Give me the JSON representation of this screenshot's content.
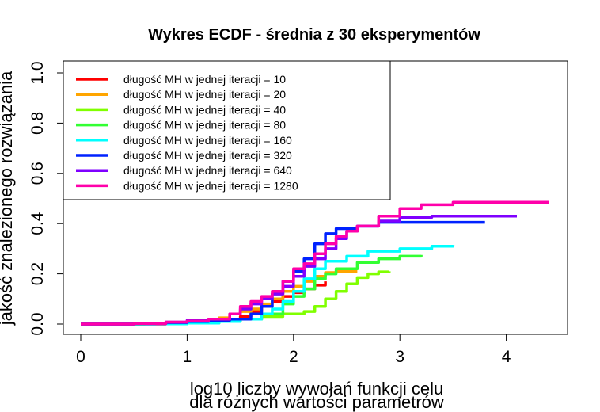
{
  "chart_data": {
    "type": "line",
    "title": "Wykres ECDF - średnia z 30 eksperymentów",
    "xlabel": "log10 liczby wywołań funkcji celu",
    "xlabel_line2": "dla różnych wartości parametrów",
    "ylabel": "jakość znalezionego rozwiązania",
    "xlim": [
      0,
      4.4
    ],
    "ylim": [
      0,
      1.0
    ],
    "xticks": [
      "0",
      "1",
      "2",
      "3",
      "4"
    ],
    "yticks": [
      "0.0",
      "0.2",
      "0.4",
      "0.6",
      "0.8",
      "1.0"
    ],
    "grid": false,
    "legend_position": "top-left",
    "series": [
      {
        "name": "długość MH w jednej iteracji = 10",
        "color": "#ff0000",
        "points": [
          [
            0,
            0
          ],
          [
            0.5,
            0
          ],
          [
            0.8,
            0.003
          ],
          [
            1.0,
            0.006
          ],
          [
            1.2,
            0.01
          ],
          [
            1.4,
            0.02
          ],
          [
            1.5,
            0.03
          ],
          [
            1.6,
            0.05
          ],
          [
            1.7,
            0.07
          ],
          [
            1.8,
            0.09
          ],
          [
            1.9,
            0.11
          ],
          [
            2.0,
            0.125
          ],
          [
            2.1,
            0.14
          ],
          [
            2.2,
            0.155
          ],
          [
            2.3,
            0.17
          ]
        ]
      },
      {
        "name": "długość MH w jednej iteracji = 20",
        "color": "#ffa500",
        "points": [
          [
            0,
            0
          ],
          [
            0.6,
            0.001
          ],
          [
            1.0,
            0.005
          ],
          [
            1.2,
            0.01
          ],
          [
            1.3,
            0.025
          ],
          [
            1.4,
            0.04
          ],
          [
            1.5,
            0.05
          ],
          [
            1.6,
            0.06
          ],
          [
            1.7,
            0.08
          ],
          [
            1.8,
            0.1
          ],
          [
            1.9,
            0.13
          ],
          [
            2.0,
            0.15
          ],
          [
            2.1,
            0.17
          ],
          [
            2.2,
            0.19
          ],
          [
            2.3,
            0.205
          ],
          [
            2.4,
            0.21
          ],
          [
            2.6,
            0.21
          ]
        ]
      },
      {
        "name": "długość MH w jednej iteracji = 40",
        "color": "#80ff00",
        "points": [
          [
            0,
            0
          ],
          [
            0.6,
            0.001
          ],
          [
            1.0,
            0.004
          ],
          [
            1.3,
            0.01
          ],
          [
            1.5,
            0.02
          ],
          [
            1.7,
            0.03
          ],
          [
            1.9,
            0.04
          ],
          [
            2.1,
            0.05
          ],
          [
            2.2,
            0.07
          ],
          [
            2.3,
            0.1
          ],
          [
            2.4,
            0.13
          ],
          [
            2.5,
            0.16
          ],
          [
            2.6,
            0.185
          ],
          [
            2.7,
            0.2
          ],
          [
            2.8,
            0.208
          ],
          [
            2.9,
            0.21
          ]
        ]
      },
      {
        "name": "długość MH w jednej iteracji = 80",
        "color": "#33ff33",
        "points": [
          [
            0,
            0
          ],
          [
            0.6,
            0.002
          ],
          [
            1.0,
            0.005
          ],
          [
            1.3,
            0.01
          ],
          [
            1.5,
            0.02
          ],
          [
            1.7,
            0.04
          ],
          [
            1.9,
            0.08
          ],
          [
            2.0,
            0.11
          ],
          [
            2.1,
            0.14
          ],
          [
            2.2,
            0.18
          ],
          [
            2.3,
            0.2
          ],
          [
            2.4,
            0.22
          ],
          [
            2.6,
            0.245
          ],
          [
            2.8,
            0.26
          ],
          [
            3.0,
            0.27
          ],
          [
            3.2,
            0.275
          ]
        ]
      },
      {
        "name": "długość MH w jednej iteracji = 160",
        "color": "#00ffff",
        "points": [
          [
            0,
            0
          ],
          [
            0.7,
            0.001
          ],
          [
            1.0,
            0.004
          ],
          [
            1.3,
            0.01
          ],
          [
            1.5,
            0.02
          ],
          [
            1.7,
            0.04
          ],
          [
            1.8,
            0.06
          ],
          [
            1.9,
            0.09
          ],
          [
            2.0,
            0.13
          ],
          [
            2.1,
            0.18
          ],
          [
            2.2,
            0.22
          ],
          [
            2.3,
            0.25
          ],
          [
            2.5,
            0.27
          ],
          [
            2.7,
            0.29
          ],
          [
            3.0,
            0.3
          ],
          [
            3.3,
            0.31
          ],
          [
            3.5,
            0.315
          ]
        ]
      },
      {
        "name": "długość MH w jednej iteracji = 320",
        "color": "#0022ff",
        "points": [
          [
            0,
            0
          ],
          [
            0.5,
            0.002
          ],
          [
            0.8,
            0.006
          ],
          [
            1.0,
            0.01
          ],
          [
            1.2,
            0.015
          ],
          [
            1.4,
            0.02
          ],
          [
            1.6,
            0.04
          ],
          [
            1.7,
            0.07
          ],
          [
            1.8,
            0.12
          ],
          [
            1.9,
            0.17
          ],
          [
            2.0,
            0.21
          ],
          [
            2.1,
            0.26
          ],
          [
            2.2,
            0.32
          ],
          [
            2.3,
            0.36
          ],
          [
            2.4,
            0.38
          ],
          [
            2.6,
            0.39
          ],
          [
            2.8,
            0.405
          ],
          [
            3.2,
            0.405
          ],
          [
            3.8,
            0.405
          ]
        ]
      },
      {
        "name": "długość MH w jednej iteracji = 640",
        "color": "#7f00ff",
        "points": [
          [
            0,
            0
          ],
          [
            0.5,
            0.002
          ],
          [
            0.8,
            0.008
          ],
          [
            1.0,
            0.015
          ],
          [
            1.2,
            0.02
          ],
          [
            1.4,
            0.04
          ],
          [
            1.5,
            0.06
          ],
          [
            1.6,
            0.08
          ],
          [
            1.7,
            0.1
          ],
          [
            1.8,
            0.12
          ],
          [
            1.9,
            0.15
          ],
          [
            2.0,
            0.19
          ],
          [
            2.1,
            0.23
          ],
          [
            2.2,
            0.26
          ],
          [
            2.3,
            0.3
          ],
          [
            2.4,
            0.34
          ],
          [
            2.5,
            0.37
          ],
          [
            2.6,
            0.39
          ],
          [
            2.8,
            0.41
          ],
          [
            3.0,
            0.425
          ],
          [
            3.3,
            0.43
          ],
          [
            4.1,
            0.43
          ]
        ]
      },
      {
        "name": "długość MH w jednej iteracji = 1280",
        "color": "#ff00aa",
        "points": [
          [
            0,
            0
          ],
          [
            0.5,
            0.002
          ],
          [
            0.8,
            0.008
          ],
          [
            1.0,
            0.012
          ],
          [
            1.2,
            0.02
          ],
          [
            1.4,
            0.04
          ],
          [
            1.5,
            0.07
          ],
          [
            1.6,
            0.09
          ],
          [
            1.7,
            0.11
          ],
          [
            1.8,
            0.13
          ],
          [
            1.9,
            0.17
          ],
          [
            2.0,
            0.22
          ],
          [
            2.1,
            0.24
          ],
          [
            2.2,
            0.28
          ],
          [
            2.3,
            0.32
          ],
          [
            2.4,
            0.35
          ],
          [
            2.5,
            0.37
          ],
          [
            2.6,
            0.39
          ],
          [
            2.8,
            0.43
          ],
          [
            3.0,
            0.46
          ],
          [
            3.2,
            0.475
          ],
          [
            3.5,
            0.485
          ],
          [
            4.4,
            0.485
          ]
        ]
      }
    ]
  }
}
